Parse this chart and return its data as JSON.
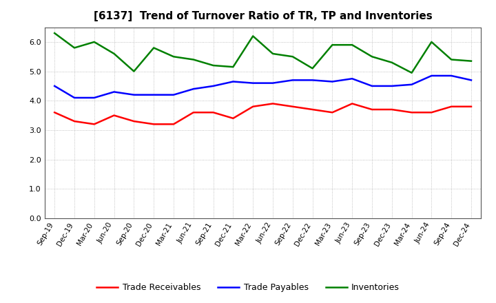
{
  "title": "[6137]  Trend of Turnover Ratio of TR, TP and Inventories",
  "x_labels": [
    "Sep-19",
    "Dec-19",
    "Mar-20",
    "Jun-20",
    "Sep-20",
    "Dec-20",
    "Mar-21",
    "Jun-21",
    "Sep-21",
    "Dec-21",
    "Mar-22",
    "Jun-22",
    "Sep-22",
    "Dec-22",
    "Mar-23",
    "Jun-23",
    "Sep-23",
    "Dec-23",
    "Mar-24",
    "Jun-24",
    "Sep-24",
    "Dec-24"
  ],
  "trade_receivables": [
    3.6,
    3.3,
    3.2,
    3.5,
    3.3,
    3.2,
    3.2,
    3.6,
    3.6,
    3.4,
    3.8,
    3.9,
    3.8,
    3.7,
    3.6,
    3.9,
    3.7,
    3.7,
    3.6,
    3.6,
    3.8,
    3.8
  ],
  "trade_payables": [
    4.5,
    4.1,
    4.1,
    4.3,
    4.2,
    4.2,
    4.2,
    4.4,
    4.5,
    4.65,
    4.6,
    4.6,
    4.7,
    4.7,
    4.65,
    4.75,
    4.5,
    4.5,
    4.55,
    4.85,
    4.85,
    4.7
  ],
  "inventories": [
    6.3,
    5.8,
    6.0,
    5.6,
    5.0,
    5.8,
    5.5,
    5.4,
    5.2,
    5.15,
    6.2,
    5.6,
    5.5,
    5.1,
    5.9,
    5.9,
    5.5,
    5.3,
    4.95,
    6.0,
    5.4,
    5.35
  ],
  "ylim": [
    0.0,
    6.5
  ],
  "yticks": [
    0.0,
    1.0,
    2.0,
    3.0,
    4.0,
    5.0,
    6.0
  ],
  "colors": {
    "trade_receivables": "#ff0000",
    "trade_payables": "#0000ff",
    "inventories": "#008000"
  },
  "legend_labels": [
    "Trade Receivables",
    "Trade Payables",
    "Inventories"
  ],
  "background_color": "#ffffff",
  "grid_color": "#b0b0b0",
  "line_width": 1.8,
  "title_fontsize": 11,
  "tick_fontsize": 7.5,
  "legend_fontsize": 9
}
